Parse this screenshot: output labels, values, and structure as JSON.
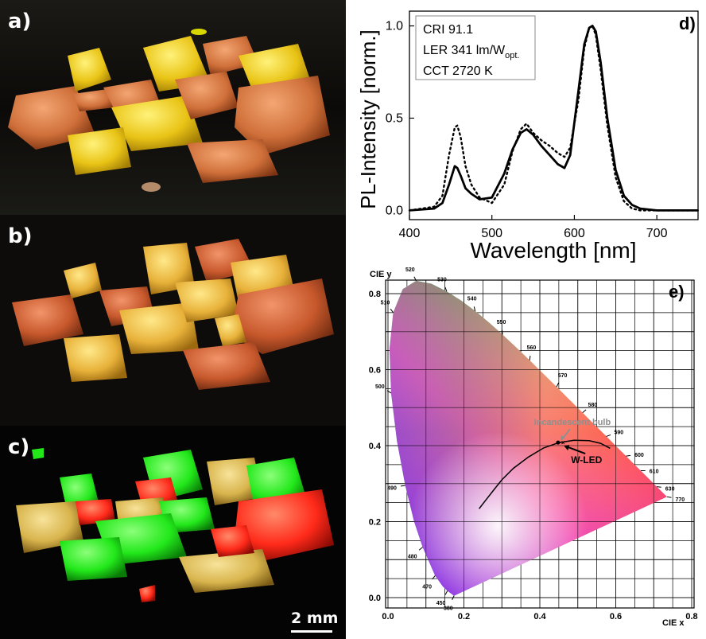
{
  "panels": {
    "a": {
      "label": "a)"
    },
    "b": {
      "label": "b)"
    },
    "c": {
      "label": "c)"
    },
    "d": {
      "label": "d)"
    },
    "e": {
      "label": "e)"
    }
  },
  "scalebar": {
    "label": "2 mm"
  },
  "colors": {
    "photo_bg": "#0a0806",
    "yellow_crystal": "#e9c416",
    "orange_crystal": "#d0703a",
    "green_pl": "#22e81a",
    "red_pl": "#ff2a1a",
    "gold_pl": "#d8b44c"
  },
  "chart_data": [
    {
      "type": "line",
      "panel": "d",
      "xlabel": "Wavelength [nm]",
      "ylabel": "PL-Intensity [norm.]",
      "xlim": [
        400,
        750
      ],
      "ylim": [
        -0.05,
        1.08
      ],
      "xticks": [
        "400",
        "500",
        "600",
        "700"
      ],
      "yticks": [
        "0.0",
        "0.5",
        "1.0"
      ],
      "legend_box": [
        "CRI 91.1",
        "LER 341 lm/W",
        "opt.",
        "CCT 2720 K"
      ],
      "series": [
        {
          "style": "solid",
          "x": [
            400,
            430,
            440,
            448,
            455,
            458,
            462,
            468,
            475,
            485,
            500,
            515,
            525,
            535,
            542,
            550,
            560,
            570,
            580,
            588,
            595,
            605,
            612,
            618,
            622,
            626,
            632,
            640,
            650,
            660,
            670,
            680,
            700,
            750
          ],
          "y": [
            0.0,
            0.01,
            0.04,
            0.14,
            0.24,
            0.23,
            0.19,
            0.12,
            0.09,
            0.06,
            0.07,
            0.2,
            0.33,
            0.42,
            0.44,
            0.41,
            0.35,
            0.3,
            0.25,
            0.23,
            0.3,
            0.65,
            0.9,
            0.99,
            1.0,
            0.97,
            0.8,
            0.5,
            0.22,
            0.08,
            0.03,
            0.01,
            0.0,
            0.0
          ]
        },
        {
          "style": "dotted",
          "x": [
            400,
            430,
            440,
            448,
            455,
            458,
            462,
            468,
            475,
            485,
            500,
            515,
            525,
            535,
            542,
            550,
            560,
            570,
            580,
            588,
            595,
            605,
            612,
            618,
            622,
            626,
            632,
            640,
            650,
            660,
            670,
            680,
            700,
            750
          ],
          "y": [
            0.0,
            0.02,
            0.08,
            0.3,
            0.45,
            0.46,
            0.4,
            0.24,
            0.14,
            0.07,
            0.04,
            0.14,
            0.32,
            0.44,
            0.47,
            0.42,
            0.38,
            0.35,
            0.31,
            0.29,
            0.34,
            0.6,
            0.88,
            0.99,
            1.0,
            0.95,
            0.76,
            0.46,
            0.18,
            0.05,
            0.01,
            0.0,
            0.0,
            0.0
          ]
        }
      ]
    },
    {
      "type": "scatter",
      "panel": "e",
      "xlabel": "CIE x",
      "ylabel": "CIE y",
      "xlim": [
        0.0,
        0.8
      ],
      "ylim": [
        0.0,
        0.85
      ],
      "xticks": [
        "0.0",
        "0.2",
        "0.4",
        "0.6",
        "0.8"
      ],
      "yticks": [
        "0.0",
        "0.2",
        "0.4",
        "0.6",
        "0.8"
      ],
      "wavelength_labels": [
        {
          "text": "380",
          "x": 0.1741,
          "y": 0.005
        },
        {
          "text": "450",
          "x": 0.1566,
          "y": 0.0177
        },
        {
          "text": "470",
          "x": 0.1241,
          "y": 0.0578
        },
        {
          "text": "480",
          "x": 0.0913,
          "y": 0.1327
        },
        {
          "text": "490",
          "x": 0.0454,
          "y": 0.295
        },
        {
          "text": "500",
          "x": 0.0082,
          "y": 0.5384
        },
        {
          "text": "510",
          "x": 0.0139,
          "y": 0.7502
        },
        {
          "text": "520",
          "x": 0.0743,
          "y": 0.8338
        },
        {
          "text": "530",
          "x": 0.1547,
          "y": 0.8059
        },
        {
          "text": "540",
          "x": 0.2296,
          "y": 0.7543
        },
        {
          "text": "550",
          "x": 0.3016,
          "y": 0.6923
        },
        {
          "text": "560",
          "x": 0.3731,
          "y": 0.6245
        },
        {
          "text": "570",
          "x": 0.4441,
          "y": 0.5547
        },
        {
          "text": "580",
          "x": 0.5125,
          "y": 0.4866
        },
        {
          "text": "590",
          "x": 0.5752,
          "y": 0.4242
        },
        {
          "text": "600",
          "x": 0.627,
          "y": 0.3725
        },
        {
          "text": "610",
          "x": 0.6658,
          "y": 0.334
        },
        {
          "text": "630",
          "x": 0.7079,
          "y": 0.292
        },
        {
          "text": "770",
          "x": 0.7347,
          "y": 0.2653
        }
      ],
      "points": [
        {
          "label": "Incandescent bulb",
          "x": 0.448,
          "y": 0.408
        },
        {
          "label": "W-LED",
          "x": 0.457,
          "y": 0.404
        }
      ]
    }
  ]
}
